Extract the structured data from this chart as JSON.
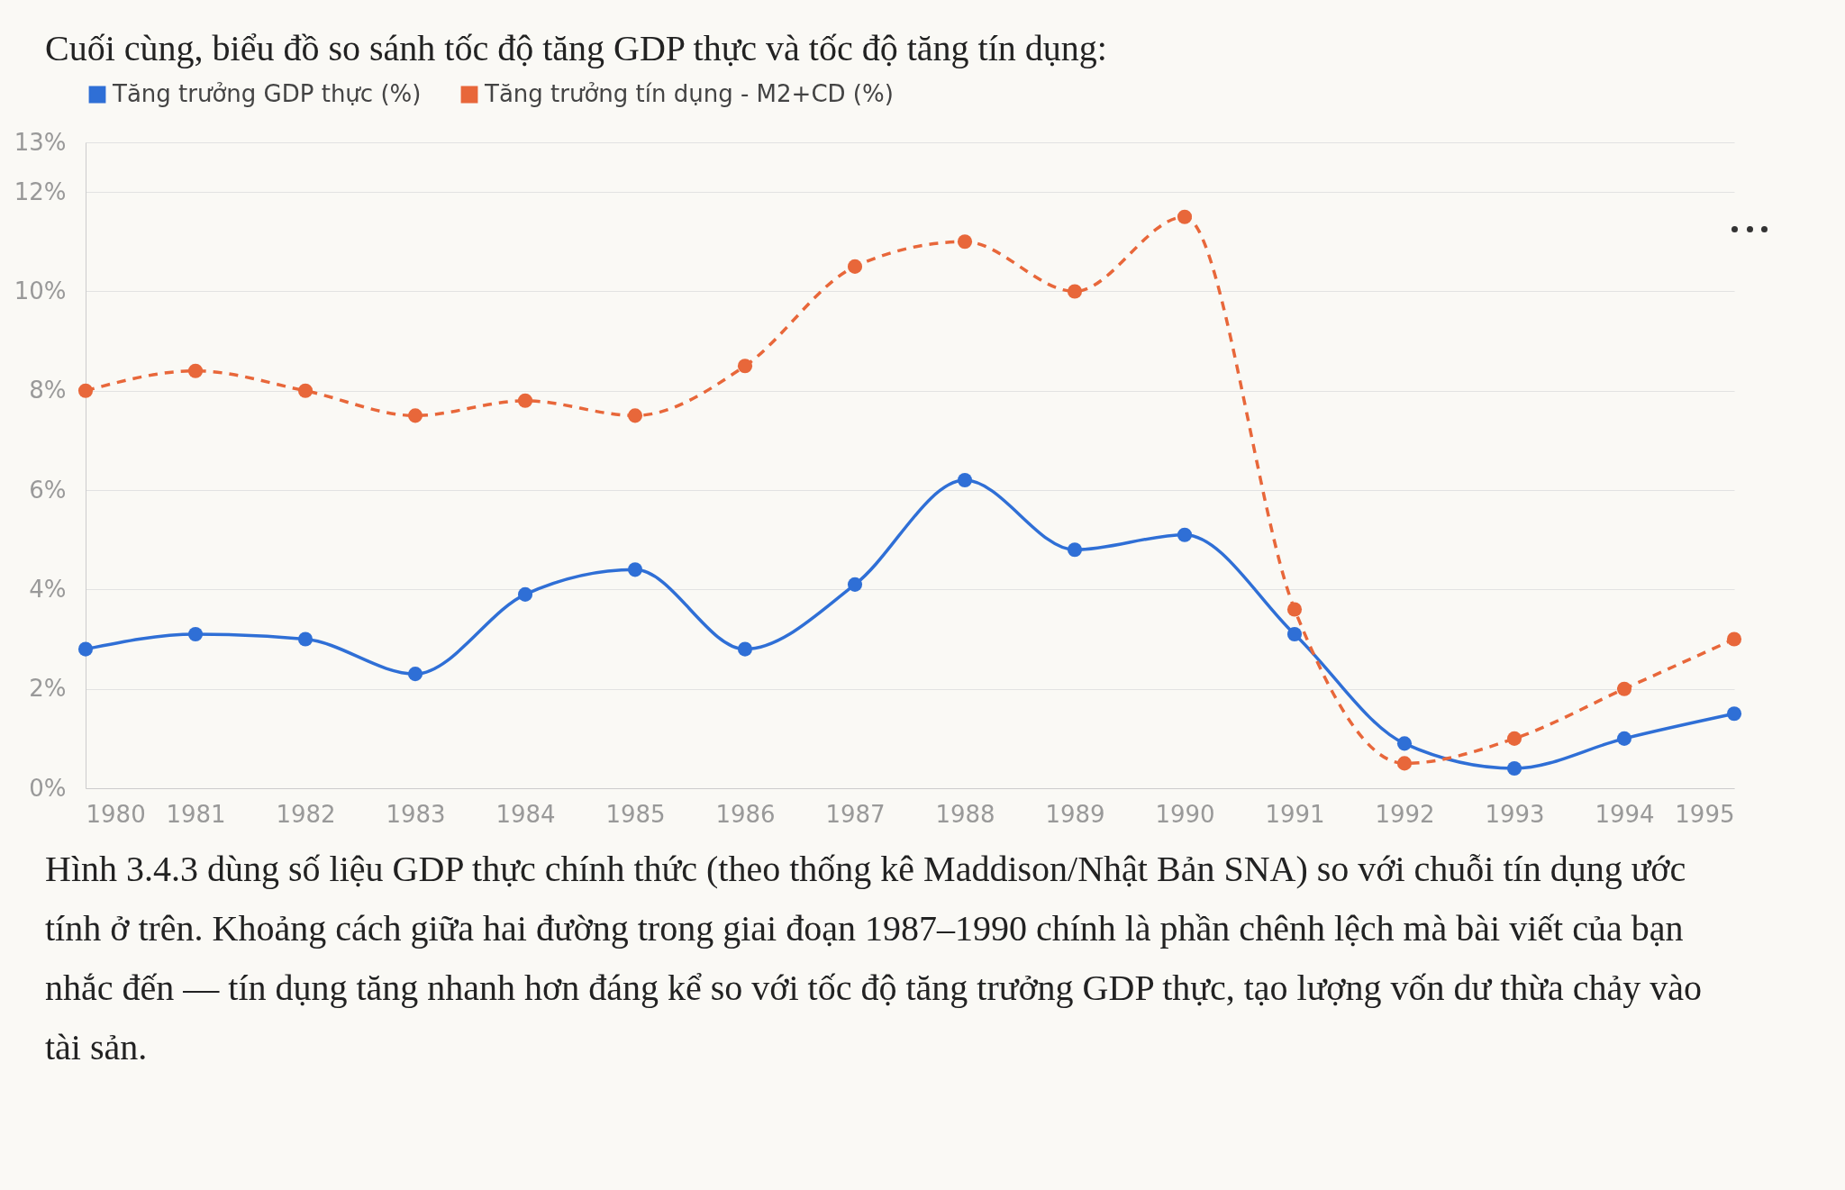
{
  "chart_data": {
    "type": "line",
    "title": "Cuối cùng, biểu đồ so sánh tốc độ tăng GDP thực và tốc độ tăng tín dụng:",
    "x": [
      1980,
      1981,
      1982,
      1983,
      1984,
      1985,
      1986,
      1987,
      1988,
      1989,
      1990,
      1991,
      1992,
      1993,
      1994,
      1995
    ],
    "series": [
      {
        "name": "Tăng trưởng GDP thực (%)",
        "color": "#2f6fd6",
        "line_style": "solid",
        "values": [
          2.8,
          3.1,
          3.0,
          2.3,
          3.9,
          4.4,
          2.8,
          4.1,
          6.2,
          4.8,
          5.1,
          3.1,
          0.9,
          0.4,
          1.0,
          1.5
        ]
      },
      {
        "name": "Tăng trưởng tín dụng - M2+CD (%)",
        "color": "#e8673a",
        "line_style": "dashed",
        "values": [
          8.0,
          8.4,
          8.0,
          7.5,
          7.8,
          7.5,
          8.5,
          10.5,
          11.0,
          10.0,
          11.5,
          3.6,
          0.5,
          1.0,
          2.0,
          3.0
        ]
      }
    ],
    "xlim": [
      1980,
      1995
    ],
    "xticks": [
      1980,
      1981,
      1982,
      1983,
      1984,
      1985,
      1986,
      1987,
      1988,
      1989,
      1990,
      1991,
      1992,
      1993,
      1994,
      1995
    ],
    "ylim": [
      0,
      13
    ],
    "yticks": [
      {
        "value": 0,
        "label": "0%"
      },
      {
        "value": 2,
        "label": "2%"
      },
      {
        "value": 4,
        "label": "4%"
      },
      {
        "value": 6,
        "label": "6%"
      },
      {
        "value": 8,
        "label": "8%"
      },
      {
        "value": 10,
        "label": "10%"
      },
      {
        "value": 12,
        "label": "12%"
      },
      {
        "value": 13,
        "label": "13%"
      }
    ],
    "grid": "y",
    "legend": "top left",
    "marker": "circle",
    "annotations": [
      "Hình 3.4.3 dùng số liệu GDP thực chính thức (theo thống kê Maddison/Nhật Bản SNA) so với chuỗi tín dụng ước tính ở trên. Khoảng cách giữa hai đường trong giai đoạn 1987–1990 chính là phần chênh lệch mà bài viết của bạn nhắc đến — tín dụng tăng nhanh hơn đáng kể so với tốc độ tăng trưởng GDP thực, tạo lượng vốn dư thừa chảy vào tài sản."
    ]
  }
}
